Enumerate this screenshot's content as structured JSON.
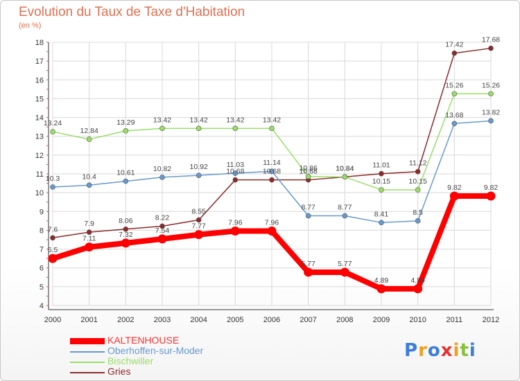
{
  "chart_data": {
    "type": "line",
    "title": "Evolution du Taux de Taxe d'Habitation",
    "subtitle": "(en %)",
    "categories": [
      "2000",
      "2001",
      "2002",
      "2003",
      "2004",
      "2005",
      "2006",
      "2007",
      "2008",
      "2009",
      "2010",
      "2011",
      "2012"
    ],
    "ylim": [
      4,
      18
    ],
    "yticks": [
      4,
      5,
      6,
      7,
      8,
      9,
      10,
      11,
      12,
      13,
      14,
      15,
      16,
      17,
      18
    ],
    "grid": true,
    "legend_position": "bottom-left",
    "series": [
      {
        "name": "KALTENHOUSE",
        "color": "#ff0000",
        "values": [
          6.5,
          7.11,
          7.32,
          7.54,
          7.77,
          7.96,
          7.96,
          5.77,
          5.77,
          4.89,
          4.89,
          9.82,
          9.82
        ],
        "labels": [
          "6.5",
          "7.11",
          "7.32",
          "7.54",
          "7.77",
          "7.96",
          "7.96",
          "5.77",
          "5.77",
          "4.89",
          "4.89",
          "9.82",
          "9.82"
        ]
      },
      {
        "name": "Oberhoffen-sur-Moder",
        "color": "#6699cc",
        "values": [
          10.3,
          10.4,
          10.61,
          10.82,
          10.92,
          11.03,
          11.14,
          8.77,
          8.77,
          8.41,
          8.5,
          13.68,
          13.82
        ],
        "labels": [
          "10.3",
          "10.4",
          "10.61",
          "10.82",
          "10.92",
          "11.03",
          "11.14",
          "8.77",
          "8.77",
          "8.41",
          "8.5",
          "13.68",
          "13.82"
        ]
      },
      {
        "name": "Bischwiller",
        "color": "#99dd66",
        "values": [
          13.24,
          12.84,
          13.29,
          13.42,
          13.42,
          13.42,
          13.42,
          10.86,
          10.84,
          10.15,
          10.15,
          15.26,
          15.26
        ],
        "labels": [
          "13.24",
          "12.84",
          "13.29",
          "13.42",
          "13.42",
          "13.42",
          "13.42",
          "10.86",
          "10.84",
          "10.15",
          "10.15",
          "15.26",
          "15.26"
        ]
      },
      {
        "name": "Gries",
        "color": "#8b2a2a",
        "values": [
          7.6,
          7.9,
          8.06,
          8.22,
          8.55,
          10.68,
          10.68,
          10.68,
          10.84,
          11.01,
          11.12,
          17.42,
          17.68
        ],
        "labels": [
          "7.6",
          "7.9",
          "8.06",
          "8.22",
          "8.55",
          "10.68",
          "10.68",
          "10.68",
          "10.84",
          "11.01",
          "11.12",
          "17.42",
          "17.68"
        ]
      }
    ]
  },
  "branding": {
    "logo_text": "Proxiti",
    "logo_colors": [
      "#3b7dd8",
      "#f0a020",
      "#3b7dd8",
      "#e83030",
      "#f0a020",
      "#88c040",
      "#3b7dd8"
    ]
  }
}
